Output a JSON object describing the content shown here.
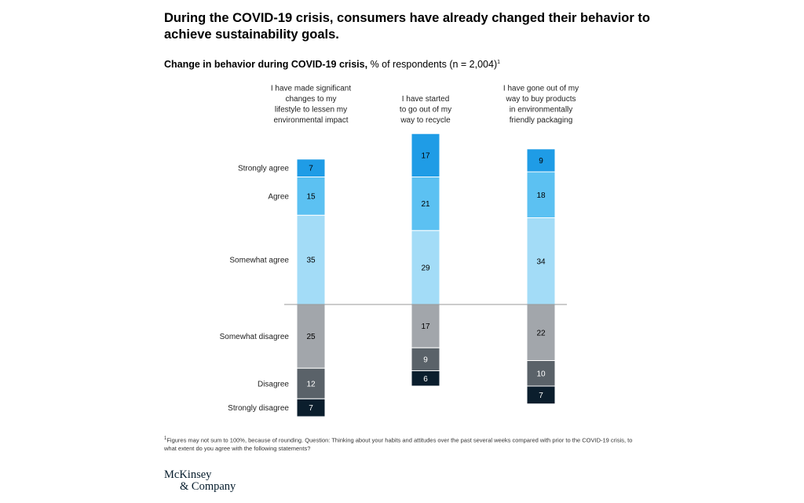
{
  "header": {
    "title": "During the COVID-19 crisis, consumers have already changed their behavior to achieve sustainability goals."
  },
  "subtitle": {
    "bold": "Change in behavior during COVID-19 crisis,",
    "rest": " % of respondents (n = 2,004)",
    "sup": "1"
  },
  "footnote": {
    "sup": "1",
    "text": "Figures may not sum to 100%, because of rounding. Question: Thinking about your habits and attitudes over the past several weeks compared with prior to the COVID-19 crisis, to what extent do you agree with the following statements?"
  },
  "logo": {
    "line1": "McKinsey",
    "line2": "& Company"
  },
  "colors": {
    "strongly_agree": "#1f9ce6",
    "agree": "#5cc1f2",
    "somewhat_agree": "#a3dcf7",
    "somewhat_disagree": "#a2a6ab",
    "disagree": "#5a6269",
    "strongly_disagree": "#0b1e2d",
    "baseline": "#9a9a9a"
  },
  "chart_data": {
    "type": "bar",
    "subtype": "diverging-stacked",
    "title": "Change in behavior during COVID-19 crisis, % of respondents (n = 2,004)",
    "categories": [
      [
        "I have made significant",
        "changes to my",
        "lifestyle to lessen my",
        "environmental impact"
      ],
      [
        "I have started",
        "to go out of my",
        "way to recycle"
      ],
      [
        "I have gone out of my",
        "way to buy products",
        "in environmentally",
        "friendly packaging"
      ]
    ],
    "agree_series": [
      {
        "name": "Somewhat agree",
        "key": "somewhat_agree",
        "values": [
          35,
          29,
          34
        ]
      },
      {
        "name": "Agree",
        "key": "agree",
        "values": [
          15,
          21,
          18
        ]
      },
      {
        "name": "Strongly agree",
        "key": "strongly_agree",
        "values": [
          7,
          17,
          9
        ]
      }
    ],
    "disagree_series": [
      {
        "name": "Somewhat disagree",
        "key": "somewhat_disagree",
        "values": [
          25,
          17,
          22
        ]
      },
      {
        "name": "Disagree",
        "key": "disagree",
        "values": [
          12,
          9,
          10
        ]
      },
      {
        "name": "Strongly disagree",
        "key": "strongly_disagree",
        "values": [
          7,
          6,
          7
        ]
      }
    ],
    "unit": "%"
  }
}
